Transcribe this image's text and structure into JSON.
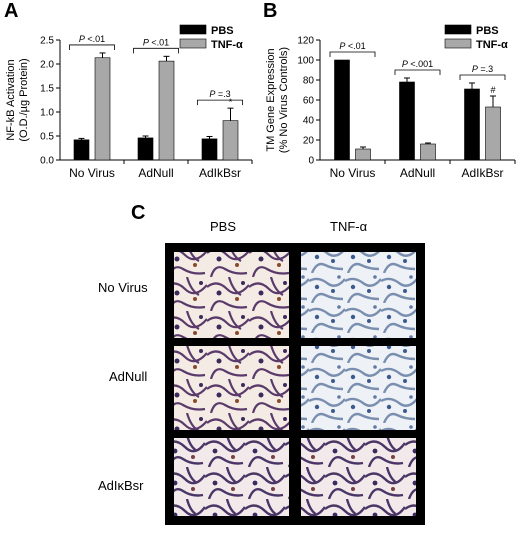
{
  "panel_a_letter": "A",
  "panel_b_letter": "B",
  "panel_c_letter": "C",
  "chart_data": [
    {
      "type": "bar",
      "panel": "A",
      "ylabel": [
        "NF-kB Activation",
        "(O.D./µg Protein)"
      ],
      "ylim": [
        0,
        2.5
      ],
      "yticks": [
        "0.0",
        "0.5",
        "1.0",
        "1.5",
        "2.0",
        "2.5"
      ],
      "categories": [
        "No Virus",
        "AdNull",
        "AdIkBsr"
      ],
      "series": [
        {
          "name": "PBS",
          "color": "#000000",
          "values": [
            0.42,
            0.46,
            0.44
          ],
          "errors": [
            0.03,
            0.04,
            0.05
          ]
        },
        {
          "name": "TNF-α",
          "color": "#a8a8a8",
          "values": [
            2.13,
            2.06,
            0.82
          ],
          "errors": [
            0.1,
            0.1,
            0.26
          ]
        }
      ],
      "annotations": [
        {
          "text": "P <.01",
          "group": 0
        },
        {
          "text": "P <.01",
          "group": 1
        },
        {
          "text": "P =.3",
          "group": 2
        }
      ],
      "marks": [
        {
          "text": "*",
          "group": 2,
          "series": 1
        }
      ],
      "legend": "top-right"
    },
    {
      "type": "bar",
      "panel": "B",
      "ylabel": [
        "TM Gene Expression",
        "(% No Virus Controls)"
      ],
      "ylim": [
        0,
        120
      ],
      "yticks": [
        "0",
        "20",
        "40",
        "60",
        "80",
        "100",
        "120"
      ],
      "categories": [
        "No Virus",
        "AdNull",
        "AdIkBsr"
      ],
      "series": [
        {
          "name": "PBS",
          "color": "#000000",
          "values": [
            100,
            78,
            71
          ],
          "errors": [
            0,
            4,
            6
          ]
        },
        {
          "name": "TNF-α",
          "color": "#a8a8a8",
          "values": [
            11,
            16,
            53
          ],
          "errors": [
            2,
            1,
            11
          ]
        }
      ],
      "annotations": [
        {
          "text": "P <.01",
          "group": 0
        },
        {
          "text": "P <.001",
          "group": 1
        },
        {
          "text": "P =.3",
          "group": 2
        }
      ],
      "marks": [
        {
          "text": "#",
          "group": 2,
          "series": 1
        }
      ],
      "legend": "top-right"
    }
  ],
  "micrographs": {
    "columns": [
      "PBS",
      "TNF-α"
    ],
    "rows": [
      "No Virus",
      "AdNull",
      "AdIκBsr"
    ]
  }
}
